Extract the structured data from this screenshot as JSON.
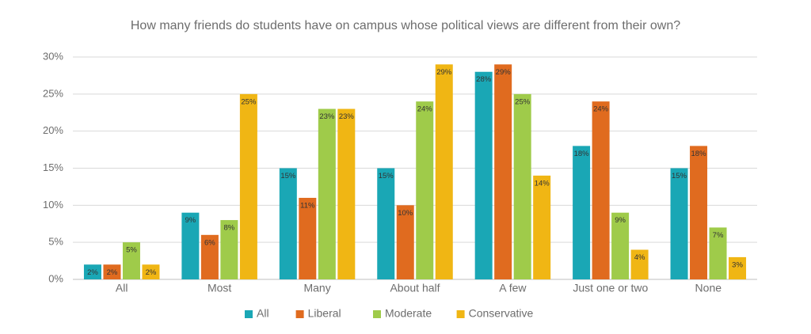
{
  "chart_data": {
    "type": "bar",
    "title": "How many friends do students have on campus whose political views are different from their own?",
    "categories": [
      "All",
      "Most",
      "Many",
      "About half",
      "A few",
      "Just one or two",
      "None"
    ],
    "series": [
      {
        "name": "All",
        "color": "#1aa7b5",
        "values": [
          2,
          9,
          15,
          15,
          28,
          18,
          15
        ],
        "value_labels": [
          "2%",
          "9%",
          "15%",
          "15%",
          "28%",
          "18%",
          "15%"
        ]
      },
      {
        "name": "Liberal",
        "color": "#e06b1f",
        "values": [
          2,
          6,
          11,
          10,
          29,
          24,
          18
        ],
        "value_labels": [
          "2%",
          "6%",
          "11%",
          "10%",
          "29%",
          "24%",
          "18%"
        ]
      },
      {
        "name": "Moderate",
        "color": "#9fcb4a",
        "values": [
          5,
          8,
          23,
          24,
          25,
          9,
          7
        ],
        "value_labels": [
          "5%",
          "8%",
          "23%",
          "24%",
          "25%",
          "9%",
          "7%"
        ]
      },
      {
        "name": "Conservative",
        "color": "#f0b614",
        "values": [
          2,
          25,
          23,
          29,
          14,
          4,
          3
        ],
        "value_labels": [
          "2%",
          "25%",
          "23%",
          "29%",
          "14%",
          "4%",
          "3%"
        ]
      }
    ],
    "ylim": [
      0,
      30
    ],
    "yticks": [
      {
        "value": 0,
        "label": "0%"
      },
      {
        "value": 5,
        "label": "5%"
      },
      {
        "value": 10,
        "label": "10%"
      },
      {
        "value": 15,
        "label": "15%"
      },
      {
        "value": 20,
        "label": "20%"
      },
      {
        "value": 25,
        "label": "25%"
      },
      {
        "value": 30,
        "label": "30%"
      }
    ],
    "grid": true,
    "legend": "bottom"
  }
}
